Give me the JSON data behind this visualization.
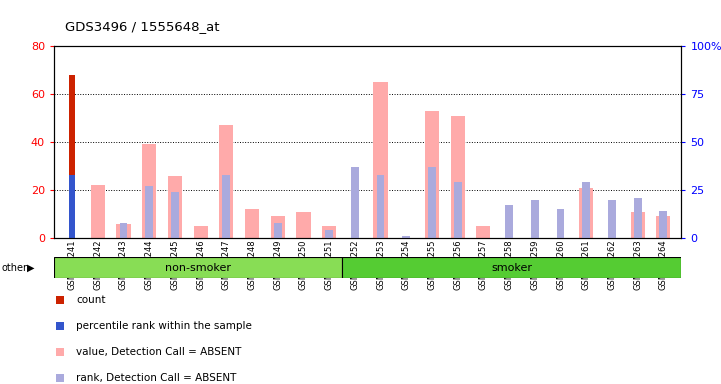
{
  "title": "GDS3496 / 1555648_at",
  "samples": [
    "GSM219241",
    "GSM219242",
    "GSM219243",
    "GSM219244",
    "GSM219245",
    "GSM219246",
    "GSM219247",
    "GSM219248",
    "GSM219249",
    "GSM219250",
    "GSM219251",
    "GSM219252",
    "GSM219253",
    "GSM219254",
    "GSM219255",
    "GSM219256",
    "GSM219257",
    "GSM219258",
    "GSM219259",
    "GSM219260",
    "GSM219261",
    "GSM219262",
    "GSM219263",
    "GSM219264"
  ],
  "count_values": [
    68,
    0,
    0,
    0,
    0,
    0,
    0,
    0,
    0,
    0,
    0,
    0,
    0,
    0,
    0,
    0,
    0,
    0,
    0,
    0,
    0,
    0,
    0,
    0
  ],
  "rank_values": [
    33,
    0,
    0,
    0,
    0,
    0,
    0,
    0,
    0,
    0,
    0,
    0,
    0,
    0,
    0,
    0,
    0,
    0,
    0,
    0,
    0,
    0,
    0,
    0
  ],
  "absent_value": [
    0,
    22,
    6,
    39,
    26,
    5,
    47,
    12,
    9,
    11,
    5,
    0,
    65,
    0,
    53,
    51,
    5,
    0,
    0,
    0,
    21,
    0,
    11,
    9
  ],
  "absent_rank": [
    0,
    0,
    8,
    27,
    24,
    0,
    33,
    0,
    8,
    0,
    4,
    37,
    33,
    1,
    37,
    29,
    0,
    17,
    20,
    15,
    29,
    20,
    21,
    14
  ],
  "ylim_left": [
    0,
    80
  ],
  "ylim_right": [
    0,
    100
  ],
  "yticks_left": [
    0,
    20,
    40,
    60,
    80
  ],
  "yticks_right": [
    0,
    25,
    50,
    75,
    100
  ],
  "count_color": "#cc2200",
  "rank_color": "#3355cc",
  "absent_value_color": "#ffaaaa",
  "absent_rank_color": "#aaaadd",
  "non_smoker_count": 11,
  "smoker_count": 13
}
